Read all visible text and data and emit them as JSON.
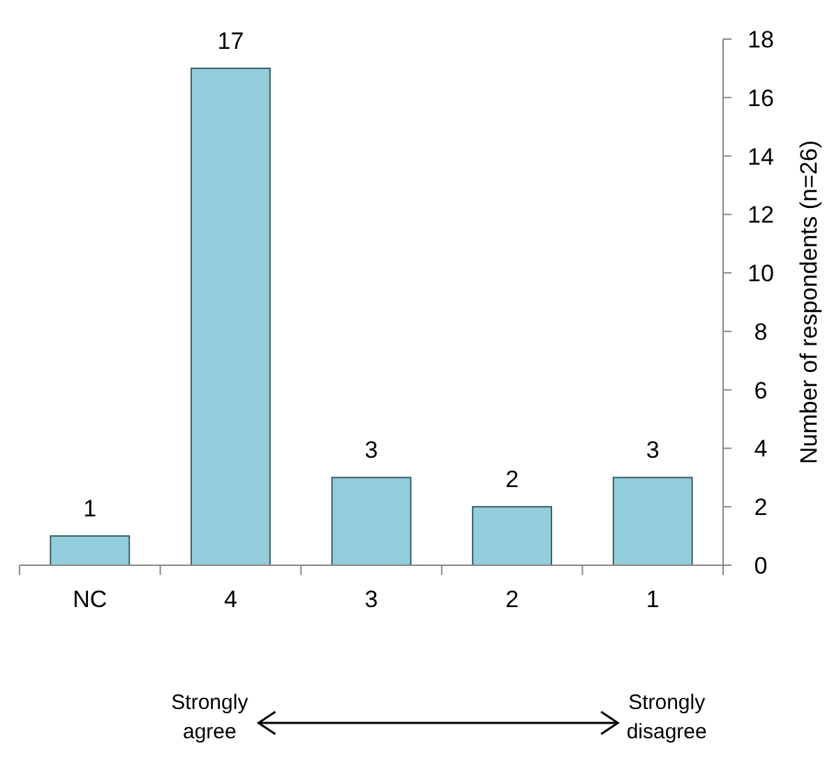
{
  "chart_data": {
    "type": "bar",
    "categories": [
      "NC",
      "4",
      "3",
      "2",
      "1"
    ],
    "values": [
      1,
      17,
      3,
      2,
      3
    ],
    "color": "#92cddc",
    "ylabel": "Number of respondents (n=26)",
    "ylim": [
      0,
      18
    ],
    "yticks": [
      0,
      2,
      4,
      6,
      8,
      10,
      12,
      14,
      16,
      18
    ],
    "data_labels": true,
    "grid": false,
    "annotations": [
      "Strongly agree",
      "Strongly disagree"
    ]
  }
}
